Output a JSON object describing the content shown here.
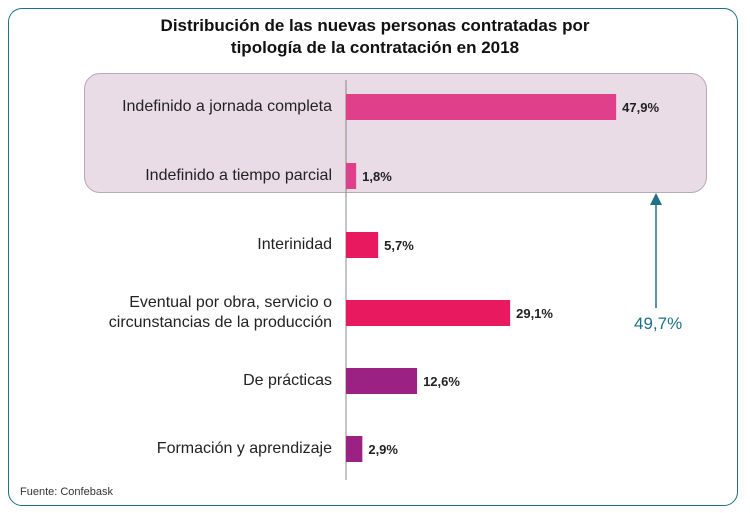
{
  "chart_data": {
    "type": "bar",
    "orientation": "horizontal",
    "title": "Distribución de las nuevas personas contratadas por\ntipología de la contratación en 2018",
    "categories": [
      "Indefinido a jornada completa",
      "Indefinido a tiempo parcial",
      "Interinidad",
      "Eventual por obra, servicio o\ncircunstancias de la producción",
      "De prácticas",
      "Formación y aprendizaje"
    ],
    "values": [
      47.9,
      1.8,
      5.7,
      29.1,
      12.6,
      2.9
    ],
    "value_labels": [
      "47,9%",
      "1,8%",
      "5,7%",
      "29,1%",
      "12,6%",
      "2,9%"
    ],
    "bar_colors": [
      "#e0408a",
      "#e0408a",
      "#e8195e",
      "#e8195e",
      "#9b2283",
      "#9b2283"
    ],
    "unit": "%",
    "xlim": [
      0,
      50
    ],
    "grid": false,
    "annotation": {
      "text": "49,7%",
      "highlighted_categories": [
        "Indefinido a jornada completa",
        "Indefinido a tiempo parcial"
      ],
      "color": "#1f6f86"
    },
    "source": "Fuente: Confebask"
  }
}
